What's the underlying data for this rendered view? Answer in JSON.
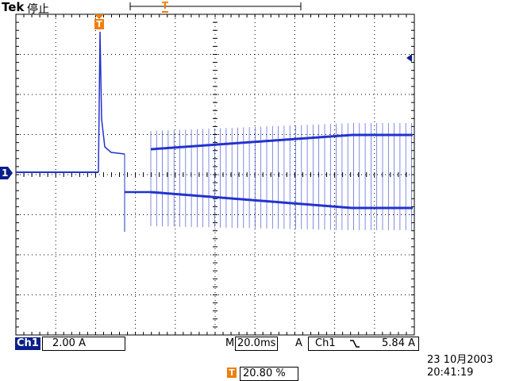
{
  "header": {
    "brand": "Tek",
    "status": "停止"
  },
  "markers": {
    "trigger_label": "T",
    "channel_ground_label": "1"
  },
  "footer": {
    "channel": "Ch1",
    "volts_per_div": "2.00 A",
    "timebase_prefix": "M",
    "timebase_value": "20.0ms",
    "trigger_source_prefix": "A",
    "trigger_channel": "Ch1",
    "trigger_slope_icon": "falling-edge-icon",
    "trigger_level": "5.84 A",
    "trigger_position_marker": "T",
    "trigger_position": "20.80 %",
    "date": "23 10月2003",
    "time": "20:41:19"
  },
  "colors": {
    "trace": "#2233cc",
    "marker_orange": "#f07d0a",
    "channel_blue": "#0b1f8a",
    "grid": "#000000"
  }
}
